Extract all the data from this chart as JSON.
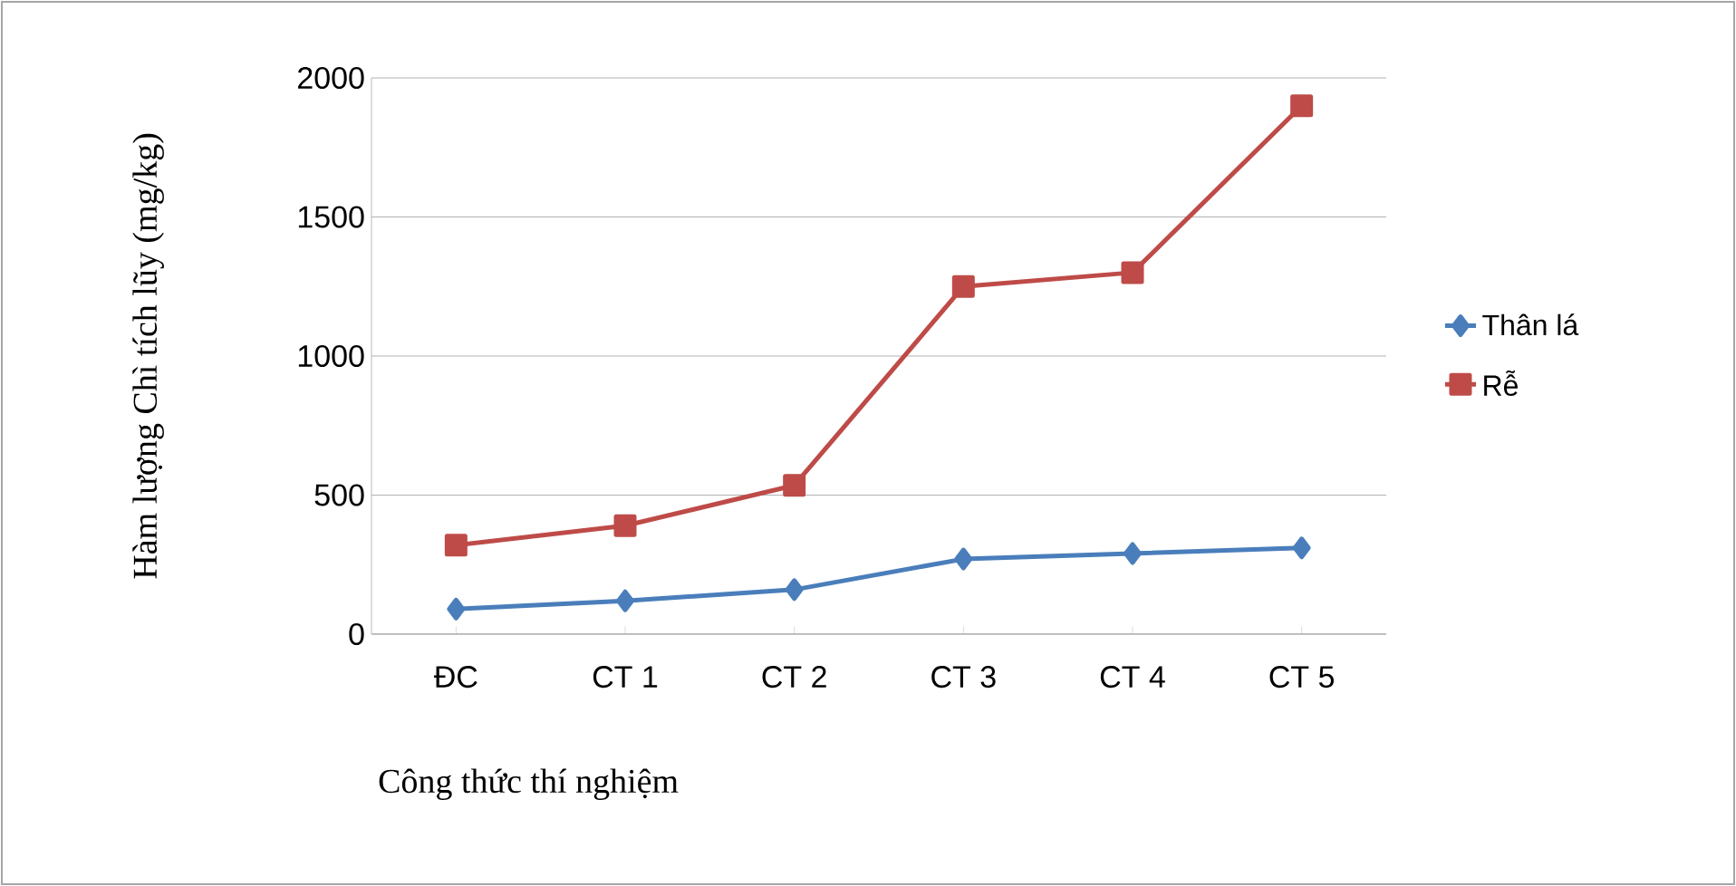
{
  "chart_data": {
    "type": "line",
    "xlabel": "Công thức thí nghiệm",
    "ylabel": "Hàm lượng Chì tích lũy (mg/kg)",
    "categories": [
      "ĐC",
      "CT 1",
      "CT 2",
      "CT 3",
      "CT 4",
      "CT 5"
    ],
    "series": [
      {
        "name": "Thân lá",
        "color": "#4a7ebb",
        "marker": "diamond",
        "values": [
          90,
          120,
          160,
          270,
          290,
          310
        ]
      },
      {
        "name": "Rễ",
        "color": "#be4b48",
        "marker": "square",
        "values": [
          320,
          390,
          535,
          1250,
          1300,
          1900
        ]
      }
    ],
    "ylim": [
      0,
      2000
    ],
    "yticks": [
      0,
      500,
      1000,
      1500,
      2000
    ],
    "grid": "y",
    "legend": "right",
    "line_style": "solid"
  }
}
